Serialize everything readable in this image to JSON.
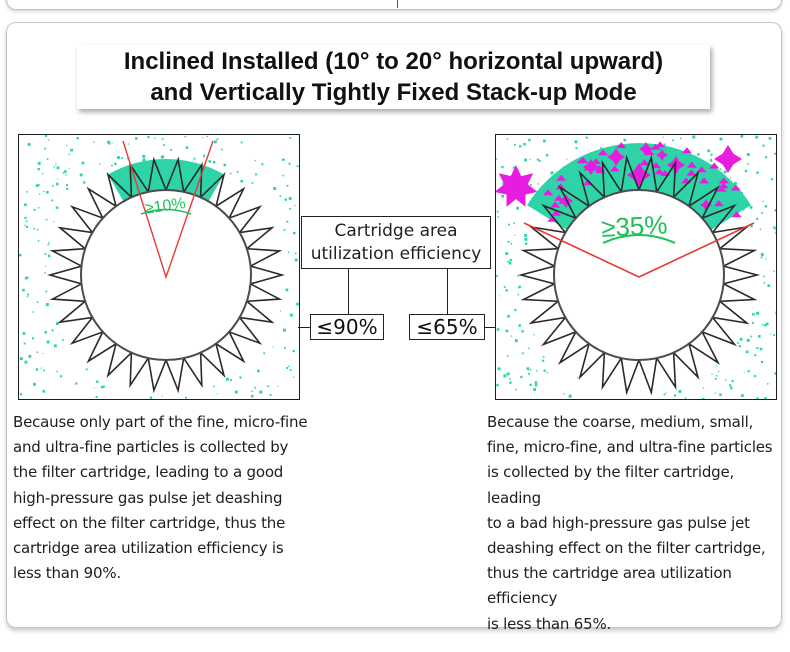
{
  "title": {
    "line1": "Inclined Installed (10° to 20° horizontal upward)",
    "line2": "and Vertically Tightly Fixed Stack-up Mode"
  },
  "left_diagram": {
    "angle_label": "≥10%"
  },
  "right_diagram": {
    "angle_label": "≥35%"
  },
  "center_label": {
    "line1": "Cartridge area",
    "line2": "utilization efficiency"
  },
  "left_percent": "≤90%",
  "right_percent": "≤65%",
  "left_description": [
    "Because only part of the fine, micro-fine",
    "and ultra-fine particles is collected by",
    "the filter cartridge, leading to a good",
    "high-pressure gas pulse jet deashing",
    "effect on the filter cartridge, thus the",
    "cartridge area utilization efficiency is",
    "less than 90%."
  ],
  "right_description": [
    "Because the coarse, medium, small,",
    "fine, micro-fine, and ultra-fine particles",
    "is collected by the filter cartridge, leading",
    "to a bad high-pressure gas pulse jet",
    "deashing effect on the filter cartridge,",
    "thus the cartridge area utilization efficiency",
    "is less than 65%."
  ],
  "colors": {
    "dust": "#2ed3a8",
    "pleat": "#2a2a2a",
    "angle_line": "#e53935",
    "angle_label": "#1fbf5a",
    "coarse_particle": "#e81ce0"
  }
}
